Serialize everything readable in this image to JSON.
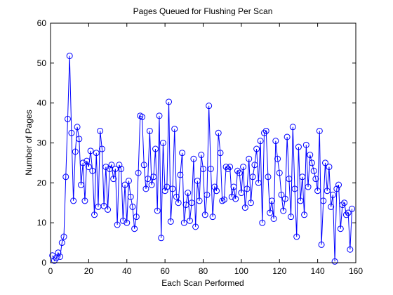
{
  "chart_data": {
    "type": "line",
    "title": "Pages Queued for Flushing Per Scan",
    "x_label": "Each Scan Performed",
    "y_label": "Number of Pages",
    "xlim": [
      0,
      160
    ],
    "xticks": [
      0,
      20,
      40,
      60,
      80,
      100,
      120,
      140,
      160
    ],
    "ylim": [
      0,
      60
    ],
    "yticks": [
      0,
      10,
      20,
      30,
      40,
      50,
      60
    ],
    "grid": false,
    "x": [
      1,
      2,
      3,
      4,
      5,
      6,
      7,
      8,
      9,
      10,
      11,
      12,
      13,
      14,
      15,
      16,
      17,
      18,
      19,
      20,
      21,
      22,
      23,
      24,
      25,
      26,
      27,
      28,
      29,
      30,
      31,
      32,
      33,
      34,
      35,
      36,
      37,
      38,
      39,
      40,
      41,
      42,
      43,
      44,
      45,
      46,
      47,
      48,
      49,
      50,
      51,
      52,
      53,
      54,
      55,
      56,
      57,
      58,
      59,
      60,
      61,
      62,
      63,
      64,
      65,
      66,
      67,
      68,
      69,
      70,
      71,
      72,
      73,
      74,
      75,
      76,
      77,
      78,
      79,
      80,
      81,
      82,
      83,
      84,
      85,
      86,
      87,
      88,
      89,
      90,
      91,
      92,
      93,
      94,
      95,
      96,
      97,
      98,
      99,
      100,
      101,
      102,
      103,
      104,
      105,
      106,
      107,
      108,
      109,
      110,
      111,
      112,
      113,
      114,
      115,
      116,
      117,
      118,
      119,
      120,
      121,
      122,
      123,
      124,
      125,
      126,
      127,
      128,
      129,
      130,
      131,
      132,
      133,
      134,
      135,
      136,
      137,
      138,
      139,
      140,
      141,
      142,
      143,
      144,
      145,
      146,
      147,
      148,
      149,
      150,
      151,
      152,
      153,
      154,
      155,
      156,
      157,
      158
    ],
    "series": [
      {
        "color": "#0000ff",
        "marker": "circle",
        "values": [
          1.8,
          0.5,
          1.2,
          2.5,
          1.5,
          5,
          6.5,
          21.5,
          36,
          51.8,
          32.5,
          15.5,
          27.8,
          34,
          31,
          19.5,
          25,
          15.5,
          25.5,
          24,
          28,
          23,
          12,
          27.5,
          14,
          33,
          28.5,
          14.2,
          24,
          13.3,
          23.5,
          24.5,
          21,
          23.5,
          9.5,
          24.5,
          23.5,
          10.5,
          19.5,
          10,
          20.5,
          16.5,
          14,
          8.5,
          11.5,
          22.5,
          36.8,
          36.5,
          24.5,
          18.5,
          21,
          33,
          19.5,
          21.5,
          28.5,
          13,
          36.8,
          6.2,
          30,
          18,
          19,
          40.3,
          10.3,
          18.5,
          33.5,
          16.5,
          15,
          22,
          27.5,
          10,
          14.5,
          17.5,
          10.5,
          15,
          26,
          9,
          20.5,
          15.5,
          27,
          23.5,
          12,
          17,
          39.3,
          23.5,
          11.5,
          19,
          18,
          32.5,
          27.5,
          15.5,
          15.8,
          24,
          23.5,
          24,
          16.5,
          19,
          16,
          23,
          22.5,
          17.5,
          24,
          13.8,
          18.5,
          26,
          15,
          21.5,
          24.5,
          28.5,
          20,
          30.5,
          10,
          32.5,
          33,
          21.5,
          12.5,
          15.5,
          11,
          30.5,
          26,
          22.5,
          17,
          13,
          16,
          31.5,
          21,
          11.5,
          34,
          18.5,
          6.5,
          29,
          15.5,
          21.5,
          12,
          29.5,
          19,
          27,
          25,
          23,
          21,
          18,
          33,
          4.5,
          15.5,
          25,
          18,
          24,
          14,
          17,
          0.3,
          18.5,
          19.5,
          8.5,
          14.5,
          15,
          12,
          12.5,
          3.3,
          13.5
        ]
      }
    ]
  }
}
